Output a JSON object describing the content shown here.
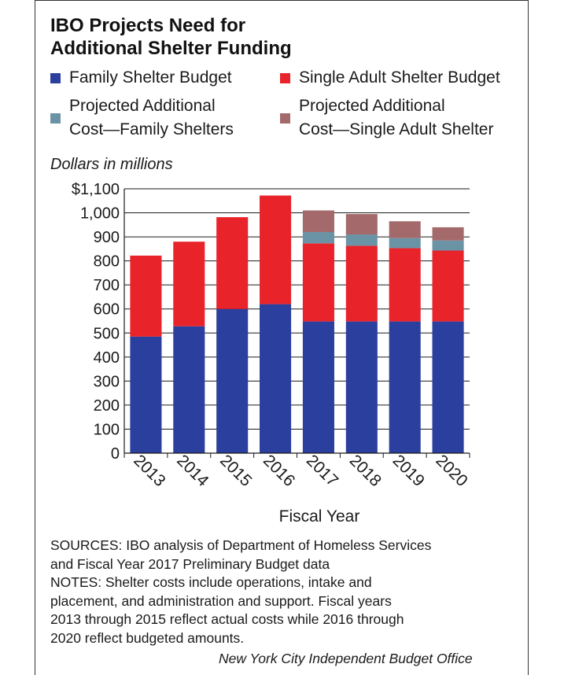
{
  "title_lines": [
    "IBO Projects Need for",
    "Additional Shelter Funding"
  ],
  "legend": [
    {
      "lines": [
        "Family Shelter Budget"
      ],
      "color": "#2a3f9e"
    },
    {
      "lines": [
        "Single Adult Shelter Budget"
      ],
      "color": "#e8232a"
    },
    {
      "lines": [
        "Projected Additional",
        "Cost—Family Shelters"
      ],
      "color": "#6b93a6"
    },
    {
      "lines": [
        "Projected Additional",
        "Cost—Single Adult Shelter"
      ],
      "color": "#a46a6b"
    }
  ],
  "units_label": "Dollars in millions",
  "notes": [
    "SOURCES: IBO analysis of Department of Homeless Services",
    "and Fiscal Year 2017 Preliminary Budget data",
    "NOTES: Shelter costs include operations, intake and",
    "placement, and administration and support. Fiscal years",
    "2013 through 2015 reflect actual costs while 2016 through",
    "2020 reflect budgeted amounts."
  ],
  "credit": "New York City Independent Budget Office",
  "chart_data": {
    "type": "bar",
    "stacked": true,
    "categories": [
      "2013",
      "2014",
      "2015",
      "2016",
      "2017",
      "2018",
      "2019",
      "2020"
    ],
    "series": [
      {
        "name": "Family Shelter Budget",
        "color": "#2a3f9e",
        "values": [
          485,
          528,
          600,
          620,
          548,
          548,
          548,
          548
        ]
      },
      {
        "name": "Single Adult Shelter Budget",
        "color": "#e8232a",
        "values": [
          337,
          352,
          382,
          452,
          325,
          315,
          305,
          295
        ]
      },
      {
        "name": "Projected Additional Cost—Family Shelters",
        "color": "#6b93a6",
        "values": [
          0,
          0,
          0,
          0,
          47,
          47,
          42,
          42
        ]
      },
      {
        "name": "Projected Additional Cost—Single Adult Shelter",
        "color": "#a46a6b",
        "values": [
          0,
          0,
          0,
          0,
          90,
          85,
          70,
          55
        ]
      }
    ],
    "xlabel": "Fiscal Year",
    "ylabel": "Dollars in millions",
    "ylim": [
      0,
      1100
    ],
    "yticks": [
      0,
      100,
      200,
      300,
      400,
      500,
      600,
      700,
      800,
      900,
      1000,
      1100
    ],
    "ytick_labels": [
      "0",
      "100",
      "200",
      "300",
      "400",
      "500",
      "600",
      "700",
      "800",
      "900",
      "1,000",
      "$1,100"
    ],
    "grid": true,
    "legend_position": "top"
  }
}
